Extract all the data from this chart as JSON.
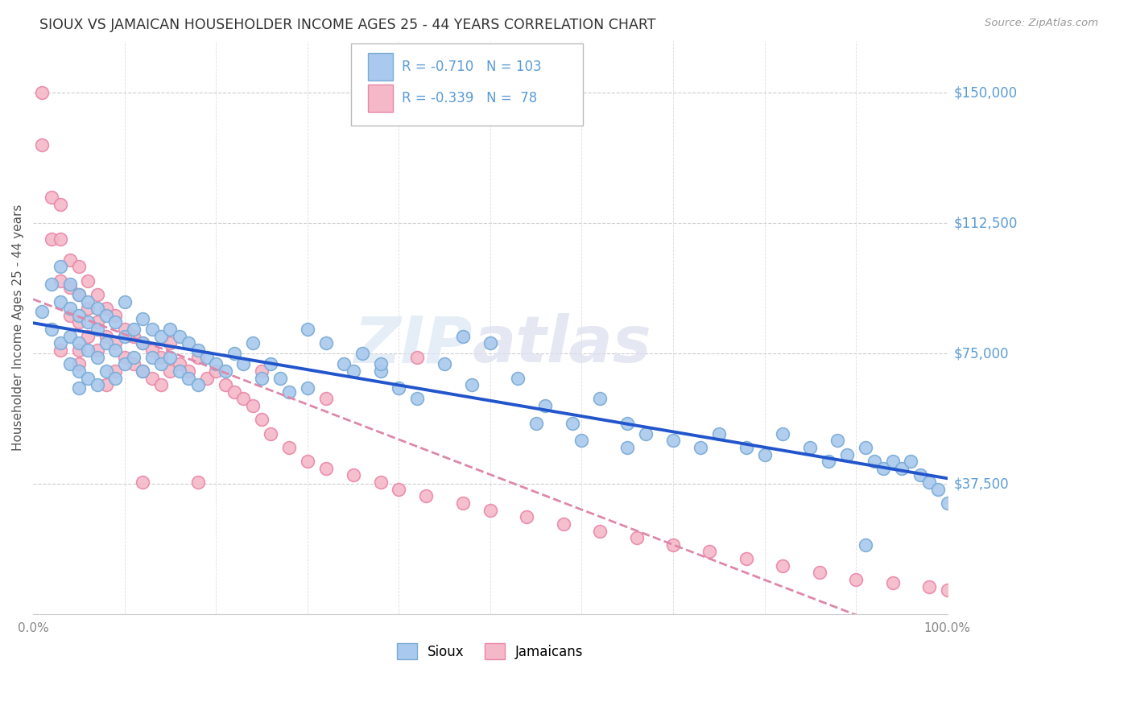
{
  "title": "SIOUX VS JAMAICAN HOUSEHOLDER INCOME AGES 25 - 44 YEARS CORRELATION CHART",
  "source": "Source: ZipAtlas.com",
  "ylabel": "Householder Income Ages 25 - 44 years",
  "ytick_labels": [
    "$150,000",
    "$112,500",
    "$75,000",
    "$37,500"
  ],
  "ytick_values": [
    150000,
    112500,
    75000,
    37500
  ],
  "ymin": 0,
  "ymax": 165000,
  "xmin": 0.0,
  "xmax": 1.0,
  "sioux_color": "#aac9ee",
  "sioux_edge_color": "#7aabd4",
  "jamaican_color": "#f5b8c8",
  "jamaican_edge_color": "#e888a8",
  "trend_sioux_color": "#2255cc",
  "trend_jamaican_color": "#dd88aa",
  "legend_R_sioux": "-0.710",
  "legend_N_sioux": "103",
  "legend_R_jamaican": "-0.339",
  "legend_N_jamaican": "78",
  "sioux_x": [
    0.01,
    0.02,
    0.02,
    0.03,
    0.03,
    0.03,
    0.04,
    0.04,
    0.04,
    0.04,
    0.05,
    0.05,
    0.05,
    0.05,
    0.05,
    0.06,
    0.06,
    0.06,
    0.06,
    0.07,
    0.07,
    0.07,
    0.07,
    0.08,
    0.08,
    0.08,
    0.09,
    0.09,
    0.09,
    0.1,
    0.1,
    0.1,
    0.11,
    0.11,
    0.12,
    0.12,
    0.12,
    0.13,
    0.13,
    0.14,
    0.14,
    0.15,
    0.15,
    0.16,
    0.16,
    0.17,
    0.17,
    0.18,
    0.18,
    0.19,
    0.2,
    0.21,
    0.22,
    0.23,
    0.24,
    0.25,
    0.26,
    0.27,
    0.28,
    0.3,
    0.32,
    0.34,
    0.36,
    0.38,
    0.4,
    0.42,
    0.45,
    0.48,
    0.5,
    0.53,
    0.56,
    0.59,
    0.62,
    0.65,
    0.67,
    0.7,
    0.73,
    0.75,
    0.78,
    0.8,
    0.82,
    0.85,
    0.87,
    0.89,
    0.91,
    0.92,
    0.93,
    0.94,
    0.95,
    0.96,
    0.97,
    0.98,
    0.99,
    1.0,
    0.88,
    0.91,
    0.47,
    0.3,
    0.35,
    0.38,
    0.55,
    0.6,
    0.65
  ],
  "sioux_y": [
    87000,
    95000,
    82000,
    100000,
    90000,
    78000,
    95000,
    88000,
    80000,
    72000,
    92000,
    86000,
    78000,
    70000,
    65000,
    90000,
    84000,
    76000,
    68000,
    88000,
    82000,
    74000,
    66000,
    86000,
    78000,
    70000,
    84000,
    76000,
    68000,
    90000,
    80000,
    72000,
    82000,
    74000,
    85000,
    78000,
    70000,
    82000,
    74000,
    80000,
    72000,
    82000,
    74000,
    80000,
    70000,
    78000,
    68000,
    76000,
    66000,
    74000,
    72000,
    70000,
    75000,
    72000,
    78000,
    68000,
    72000,
    68000,
    64000,
    82000,
    78000,
    72000,
    75000,
    70000,
    65000,
    62000,
    72000,
    66000,
    78000,
    68000,
    60000,
    55000,
    62000,
    55000,
    52000,
    50000,
    48000,
    52000,
    48000,
    46000,
    52000,
    48000,
    44000,
    46000,
    48000,
    44000,
    42000,
    44000,
    42000,
    44000,
    40000,
    38000,
    36000,
    32000,
    50000,
    20000,
    80000,
    65000,
    70000,
    72000,
    55000,
    50000,
    48000
  ],
  "jamaican_x": [
    0.01,
    0.01,
    0.02,
    0.02,
    0.03,
    0.03,
    0.03,
    0.04,
    0.04,
    0.04,
    0.05,
    0.05,
    0.05,
    0.05,
    0.06,
    0.06,
    0.06,
    0.07,
    0.07,
    0.07,
    0.08,
    0.08,
    0.09,
    0.09,
    0.09,
    0.1,
    0.1,
    0.11,
    0.11,
    0.12,
    0.12,
    0.13,
    0.13,
    0.14,
    0.14,
    0.15,
    0.15,
    0.16,
    0.17,
    0.18,
    0.19,
    0.2,
    0.21,
    0.22,
    0.23,
    0.24,
    0.25,
    0.26,
    0.28,
    0.3,
    0.32,
    0.35,
    0.38,
    0.4,
    0.43,
    0.47,
    0.5,
    0.54,
    0.58,
    0.62,
    0.66,
    0.7,
    0.74,
    0.78,
    0.82,
    0.86,
    0.9,
    0.94,
    0.98,
    1.0,
    0.03,
    0.05,
    0.08,
    0.12,
    0.18,
    0.25,
    0.32,
    0.42
  ],
  "jamaican_y": [
    150000,
    135000,
    120000,
    108000,
    118000,
    108000,
    96000,
    102000,
    94000,
    86000,
    100000,
    92000,
    84000,
    76000,
    96000,
    88000,
    80000,
    92000,
    84000,
    76000,
    88000,
    80000,
    86000,
    78000,
    70000,
    82000,
    74000,
    80000,
    72000,
    78000,
    70000,
    76000,
    68000,
    74000,
    66000,
    78000,
    70000,
    72000,
    70000,
    74000,
    68000,
    70000,
    66000,
    64000,
    62000,
    60000,
    56000,
    52000,
    48000,
    44000,
    42000,
    40000,
    38000,
    36000,
    34000,
    32000,
    30000,
    28000,
    26000,
    24000,
    22000,
    20000,
    18000,
    16000,
    14000,
    12000,
    10000,
    9000,
    8000,
    7000,
    76000,
    72000,
    66000,
    38000,
    38000,
    70000,
    62000,
    74000
  ]
}
